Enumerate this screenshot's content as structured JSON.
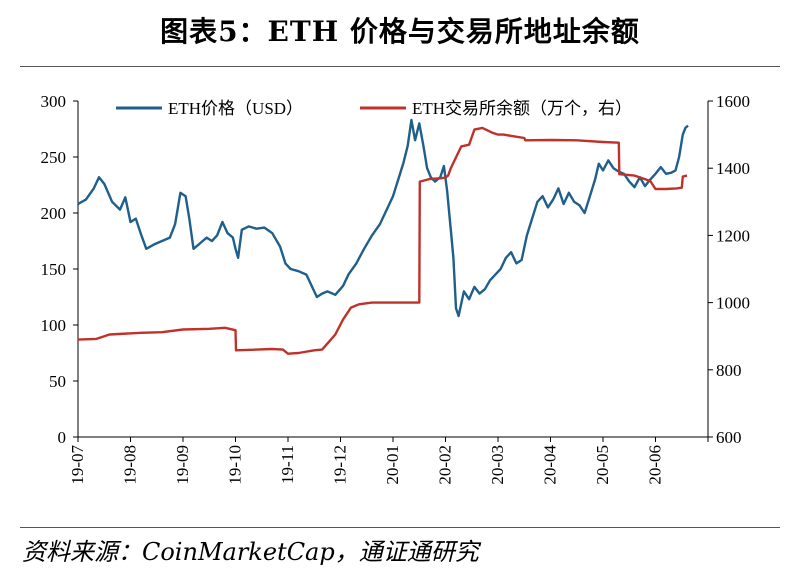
{
  "title": "图表5：ETH 价格与交易所地址余额",
  "source": "资料来源：CoinMarketCap，通证通研究",
  "chart_data": {
    "type": "line",
    "x": [
      "19-07",
      "19-08",
      "19-09",
      "19-10",
      "19-11",
      "19-12",
      "20-01",
      "20-02",
      "20-03",
      "20-04",
      "20-05",
      "20-06"
    ],
    "x_tick_labels": [
      "19-07",
      "19-08",
      "19-09",
      "19-10",
      "19-11",
      "19-12",
      "20-01",
      "20-02",
      "20-03",
      "20-04",
      "20-05",
      "20-06"
    ],
    "y_left": {
      "label": "",
      "ylim": [
        0,
        300
      ],
      "ticks": [
        "0",
        "50",
        "100",
        "150",
        "200",
        "250",
        "300"
      ]
    },
    "y_right": {
      "label": "",
      "ylim": [
        600,
        1600
      ],
      "ticks": [
        "600",
        "800",
        "1000",
        "1200",
        "1400",
        "1600"
      ]
    },
    "legend": {
      "placement": "top"
    },
    "series": [
      {
        "name": "ETH价格（USD）",
        "axis": "left",
        "color": "#1f5f8b",
        "points": [
          [
            0.0,
            208
          ],
          [
            0.15,
            212
          ],
          [
            0.3,
            222
          ],
          [
            0.4,
            232
          ],
          [
            0.5,
            226
          ],
          [
            0.65,
            210
          ],
          [
            0.8,
            203
          ],
          [
            0.9,
            214
          ],
          [
            1.0,
            192
          ],
          [
            1.1,
            195
          ],
          [
            1.2,
            181
          ],
          [
            1.3,
            168
          ],
          [
            1.45,
            172
          ],
          [
            1.6,
            175
          ],
          [
            1.75,
            178
          ],
          [
            1.85,
            190
          ],
          [
            1.95,
            218
          ],
          [
            2.05,
            215
          ],
          [
            2.12,
            195
          ],
          [
            2.2,
            168
          ],
          [
            2.3,
            172
          ],
          [
            2.45,
            178
          ],
          [
            2.55,
            175
          ],
          [
            2.65,
            180
          ],
          [
            2.75,
            192
          ],
          [
            2.85,
            182
          ],
          [
            2.95,
            178
          ],
          [
            3.0,
            168
          ],
          [
            3.05,
            160
          ],
          [
            3.12,
            185
          ],
          [
            3.25,
            188
          ],
          [
            3.4,
            186
          ],
          [
            3.55,
            187
          ],
          [
            3.7,
            182
          ],
          [
            3.85,
            170
          ],
          [
            3.95,
            155
          ],
          [
            4.05,
            150
          ],
          [
            4.2,
            148
          ],
          [
            4.35,
            145
          ],
          [
            4.45,
            135
          ],
          [
            4.55,
            125
          ],
          [
            4.65,
            128
          ],
          [
            4.75,
            130
          ],
          [
            4.9,
            127
          ],
          [
            5.05,
            135
          ],
          [
            5.15,
            145
          ],
          [
            5.3,
            155
          ],
          [
            5.45,
            168
          ],
          [
            5.6,
            180
          ],
          [
            5.75,
            190
          ],
          [
            5.9,
            205
          ],
          [
            6.0,
            215
          ],
          [
            6.1,
            230
          ],
          [
            6.2,
            245
          ],
          [
            6.28,
            260
          ],
          [
            6.35,
            283
          ],
          [
            6.42,
            265
          ],
          [
            6.5,
            280
          ],
          [
            6.58,
            260
          ],
          [
            6.65,
            240
          ],
          [
            6.72,
            232
          ],
          [
            6.8,
            228
          ],
          [
            6.9,
            232
          ],
          [
            6.97,
            242
          ],
          [
            7.03,
            220
          ],
          [
            7.1,
            185
          ],
          [
            7.15,
            160
          ],
          [
            7.2,
            115
          ],
          [
            7.25,
            108
          ],
          [
            7.35,
            130
          ],
          [
            7.45,
            123
          ],
          [
            7.55,
            134
          ],
          [
            7.65,
            128
          ],
          [
            7.75,
            132
          ],
          [
            7.85,
            140
          ],
          [
            7.95,
            145
          ],
          [
            8.05,
            150
          ],
          [
            8.15,
            160
          ],
          [
            8.25,
            165
          ],
          [
            8.35,
            155
          ],
          [
            8.45,
            158
          ],
          [
            8.55,
            180
          ],
          [
            8.65,
            195
          ],
          [
            8.75,
            210
          ],
          [
            8.85,
            215
          ],
          [
            8.95,
            205
          ],
          [
            9.05,
            212
          ],
          [
            9.15,
            222
          ],
          [
            9.25,
            208
          ],
          [
            9.35,
            218
          ],
          [
            9.45,
            210
          ],
          [
            9.55,
            207
          ],
          [
            9.65,
            200
          ],
          [
            9.75,
            215
          ],
          [
            9.85,
            230
          ],
          [
            9.92,
            244
          ],
          [
            10.0,
            238
          ],
          [
            10.1,
            247
          ],
          [
            10.2,
            240
          ],
          [
            10.3,
            237
          ],
          [
            10.4,
            235
          ],
          [
            10.5,
            228
          ],
          [
            10.6,
            223
          ],
          [
            10.7,
            232
          ],
          [
            10.8,
            224
          ],
          [
            10.9,
            230
          ],
          [
            11.0,
            235
          ],
          [
            11.1,
            241
          ],
          [
            11.2,
            235
          ],
          [
            11.3,
            236
          ],
          [
            11.38,
            238
          ],
          [
            11.45,
            250
          ],
          [
            11.52,
            270
          ],
          [
            11.57,
            276
          ],
          [
            11.62,
            278
          ]
        ]
      },
      {
        "name": "ETH交易所余额（万个，右）",
        "axis": "right",
        "color": "#c0312a",
        "points": [
          [
            0.0,
            890
          ],
          [
            0.35,
            892
          ],
          [
            0.5,
            900
          ],
          [
            0.6,
            905
          ],
          [
            1.2,
            910
          ],
          [
            1.6,
            912
          ],
          [
            2.0,
            920
          ],
          [
            2.5,
            922
          ],
          [
            2.8,
            925
          ],
          [
            3.0,
            918
          ],
          [
            3.01,
            858
          ],
          [
            3.4,
            860
          ],
          [
            3.7,
            862
          ],
          [
            3.9,
            860
          ],
          [
            4.0,
            848
          ],
          [
            4.2,
            850
          ],
          [
            4.5,
            858
          ],
          [
            4.65,
            860
          ],
          [
            4.75,
            878
          ],
          [
            4.9,
            905
          ],
          [
            5.05,
            950
          ],
          [
            5.2,
            985
          ],
          [
            5.35,
            995
          ],
          [
            5.6,
            1000
          ],
          [
            5.9,
            1000
          ],
          [
            6.2,
            1000
          ],
          [
            6.5,
            1000
          ],
          [
            6.51,
            1360
          ],
          [
            6.7,
            1368
          ],
          [
            6.9,
            1370
          ],
          [
            7.0,
            1372
          ],
          [
            7.05,
            1378
          ],
          [
            7.1,
            1400
          ],
          [
            7.3,
            1465
          ],
          [
            7.45,
            1470
          ],
          [
            7.55,
            1515
          ],
          [
            7.7,
            1520
          ],
          [
            7.9,
            1505
          ],
          [
            8.0,
            1500
          ],
          [
            8.1,
            1500
          ],
          [
            8.3,
            1495
          ],
          [
            8.5,
            1490
          ],
          [
            8.52,
            1483
          ],
          [
            9.0,
            1484
          ],
          [
            9.5,
            1483
          ],
          [
            10.0,
            1478
          ],
          [
            10.3,
            1476
          ],
          [
            10.31,
            1382
          ],
          [
            10.6,
            1378
          ],
          [
            10.9,
            1362
          ],
          [
            11.0,
            1338
          ],
          [
            11.2,
            1338
          ],
          [
            11.4,
            1340
          ],
          [
            11.5,
            1342
          ],
          [
            11.52,
            1375
          ],
          [
            11.6,
            1378
          ]
        ]
      }
    ]
  }
}
